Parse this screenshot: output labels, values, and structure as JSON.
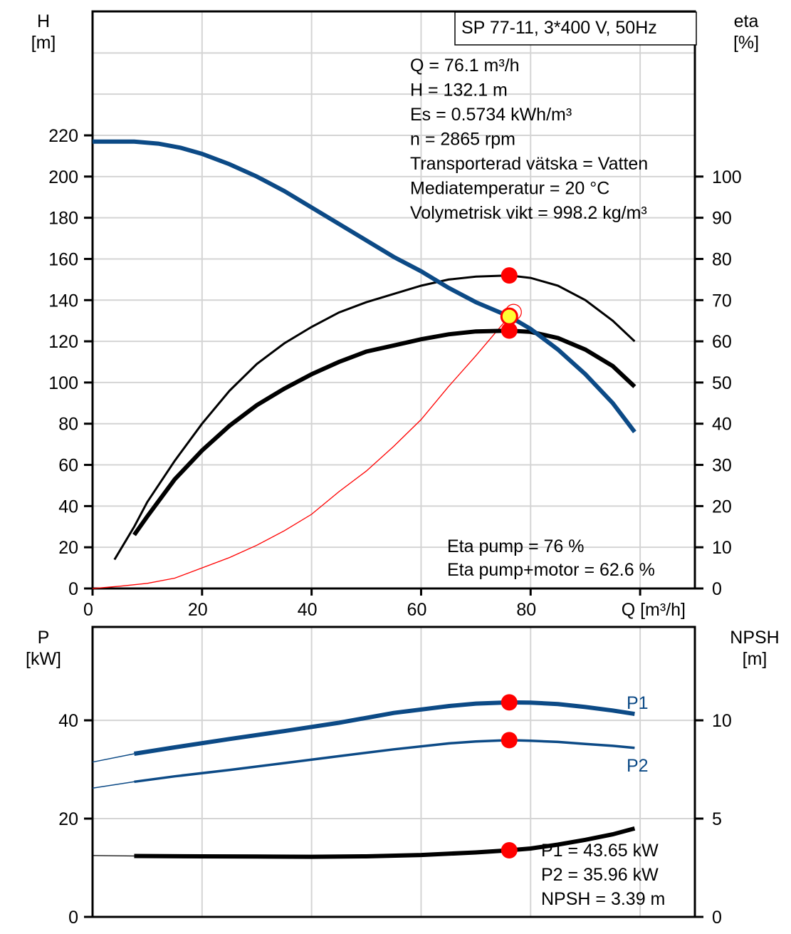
{
  "chart_data": [
    {
      "type": "line",
      "title": "SP 77-11, 3*400 V, 50Hz",
      "xlabel": "Q [m³/h]",
      "xlim": [
        0,
        110
      ],
      "x_ticks": [
        "0",
        "20",
        "40",
        "60",
        "80"
      ],
      "y_left": {
        "label_line1": "H",
        "label_line2": "[m]",
        "lim": [
          0,
          220
        ],
        "ticks": [
          "0",
          "20",
          "40",
          "60",
          "80",
          "100",
          "120",
          "140",
          "160",
          "180",
          "200",
          "220"
        ]
      },
      "y_right": {
        "label_line1": "eta",
        "label_line2": "[%]",
        "lim": [
          0,
          110
        ],
        "ticks": [
          "0",
          "10",
          "20",
          "30",
          "40",
          "50",
          "60",
          "70",
          "80",
          "90",
          "100"
        ]
      },
      "grid": true,
      "series": [
        {
          "axis": "left",
          "color": "#0c4a86",
          "x": [
            0,
            7.6,
            12,
            16,
            20,
            25,
            30,
            35,
            40,
            45,
            50,
            55,
            60,
            65,
            70,
            76.1,
            80,
            85,
            90,
            95,
            99
          ],
          "y": [
            217,
            217,
            216,
            214,
            211,
            206,
            200,
            193,
            185,
            177,
            169,
            161,
            154,
            146,
            139,
            132.1,
            126,
            116,
            104,
            90,
            76
          ]
        },
        {
          "axis": "right",
          "color": "#000000",
          "x": [
            4,
            7.6,
            10,
            15,
            20,
            25,
            30,
            35,
            40,
            45,
            50,
            55,
            60,
            65,
            70,
            76.1,
            80,
            85,
            90,
            95,
            99
          ],
          "y": [
            7,
            15,
            21,
            31,
            40,
            48,
            54.5,
            59.5,
            63.5,
            67,
            69.5,
            71.5,
            73.5,
            75,
            75.7,
            76,
            75.4,
            73.5,
            70,
            65,
            60
          ]
        },
        {
          "axis": "right",
          "color": "#000000",
          "x": [
            7.6,
            10,
            15,
            20,
            25,
            30,
            35,
            40,
            45,
            50,
            55,
            60,
            65,
            70,
            76.1,
            80,
            85,
            90,
            95,
            99
          ],
          "y": [
            13,
            17.5,
            26.5,
            33.5,
            39.5,
            44.5,
            48.5,
            52,
            55,
            57.5,
            59,
            60.5,
            61.7,
            62.4,
            62.6,
            62.3,
            60.8,
            58,
            54,
            49
          ]
        },
        {
          "axis": "left",
          "color": "#ff0000",
          "x": [
            0,
            5,
            10,
            15,
            20,
            25,
            30,
            35,
            40,
            45,
            50,
            55,
            60,
            65,
            70,
            76.1
          ],
          "y": [
            0,
            1.1,
            2.5,
            5,
            10,
            15,
            21,
            28,
            36,
            47,
            57,
            69,
            82,
            98,
            113,
            132.1
          ]
        }
      ],
      "operating_point": {
        "x": 76.1,
        "y": 132.1
      },
      "markers": [
        {
          "axis": "right",
          "x": 76.1,
          "y": 76
        },
        {
          "axis": "right",
          "x": 76.1,
          "y": 62.6
        }
      ],
      "annotations": [
        "Q = 76.1 m³/h",
        "H = 132.1 m",
        "Es = 0.5734 kWh/m³",
        "n = 2865 rpm",
        "Transporterad vätska = Vatten",
        "Mediatemperatur = 20 °C",
        "Volymetrisk vikt = 998.2 kg/m³"
      ],
      "eta_annotations": [
        "Eta pump = 76 %",
        "Eta pump+motor = 62.6 %"
      ]
    },
    {
      "type": "line",
      "xlim": [
        0,
        110
      ],
      "y_left": {
        "label_line1": "P",
        "label_line2": "[kW]",
        "lim": [
          0,
          59
        ],
        "ticks": [
          "0",
          "20",
          "40"
        ]
      },
      "y_right": {
        "label_line1": "NPSH",
        "label_line2": "[m]",
        "lim": [
          0,
          14.75
        ],
        "ticks": [
          "0",
          "5",
          "10"
        ]
      },
      "grid": true,
      "series": [
        {
          "name": "P1",
          "axis": "left",
          "color": "#0c4a86",
          "x": [
            0,
            7.6,
            15,
            25,
            35,
            45,
            55,
            65,
            70,
            76.1,
            80,
            85,
            90,
            95,
            99
          ],
          "y": [
            31.5,
            33.2,
            34.5,
            36.2,
            37.8,
            39.5,
            41.5,
            42.9,
            43.4,
            43.65,
            43.6,
            43.3,
            42.7,
            42,
            41.3
          ]
        },
        {
          "name": "P2",
          "axis": "left",
          "color": "#0c4a86",
          "x": [
            0,
            7.6,
            15,
            25,
            35,
            45,
            55,
            65,
            70,
            76.1,
            80,
            85,
            90,
            95,
            99
          ],
          "y": [
            26.2,
            27.5,
            28.6,
            29.9,
            31.3,
            32.7,
            34.1,
            35.3,
            35.7,
            35.96,
            35.85,
            35.6,
            35.2,
            34.8,
            34.4
          ]
        },
        {
          "name": "NPSH",
          "axis": "right",
          "color": "#000000",
          "x": [
            0,
            7.6,
            20,
            30,
            40,
            50,
            60,
            70,
            76.1,
            80,
            85,
            90,
            95,
            99
          ],
          "y": [
            3.12,
            3.1,
            3.08,
            3.07,
            3.06,
            3.08,
            3.15,
            3.28,
            3.39,
            3.48,
            3.68,
            3.92,
            4.2,
            4.5
          ]
        }
      ],
      "markers": [
        {
          "axis": "left",
          "x": 76.1,
          "y": 43.65
        },
        {
          "axis": "left",
          "x": 76.1,
          "y": 35.96
        },
        {
          "axis": "right",
          "x": 76.1,
          "y": 3.39
        }
      ],
      "annotations": [
        "P1 = 43.65 kW",
        "P2 = 35.96 kW",
        "NPSH = 3.39 m"
      ]
    }
  ]
}
